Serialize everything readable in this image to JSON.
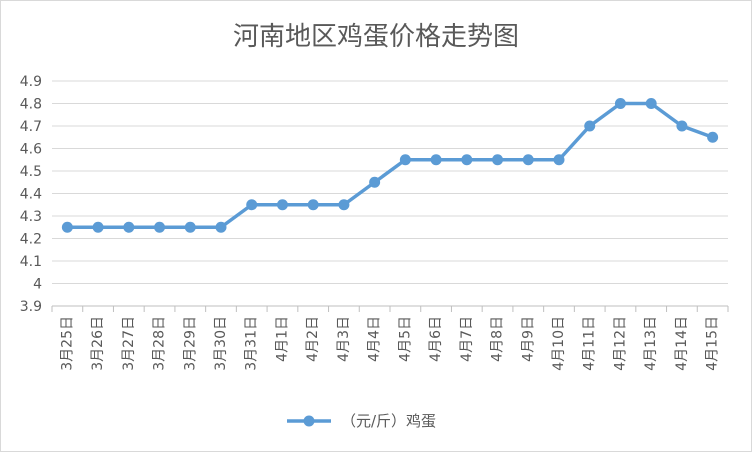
{
  "chart_data": {
    "type": "line",
    "title": "河南地区鸡蛋价格走势图",
    "categories": [
      "3月25日",
      "3月26日",
      "3月27日",
      "3月28日",
      "3月29日",
      "3月30日",
      "3月31日",
      "4月1日",
      "4月2日",
      "4月3日",
      "4月4日",
      "4月5日",
      "4月6日",
      "4月7日",
      "4月8日",
      "4月9日",
      "4月10日",
      "4月11日",
      "4月12日",
      "4月13日",
      "4月14日",
      "4月15日"
    ],
    "series": [
      {
        "name": "（元/斤）鸡蛋",
        "color": "#5b9bd5",
        "values": [
          4.25,
          4.25,
          4.25,
          4.25,
          4.25,
          4.25,
          4.35,
          4.35,
          4.35,
          4.35,
          4.45,
          4.55,
          4.55,
          4.55,
          4.55,
          4.55,
          4.55,
          4.7,
          4.8,
          4.8,
          4.7,
          4.65
        ]
      }
    ],
    "xlabel": "",
    "ylabel": "",
    "ylim": [
      3.9,
      4.9
    ],
    "yticks": [
      "3.9",
      "4",
      "4.1",
      "4.2",
      "4.3",
      "4.4",
      "4.5",
      "4.6",
      "4.7",
      "4.8",
      "4.9"
    ],
    "grid": true,
    "legend": "bottom"
  }
}
